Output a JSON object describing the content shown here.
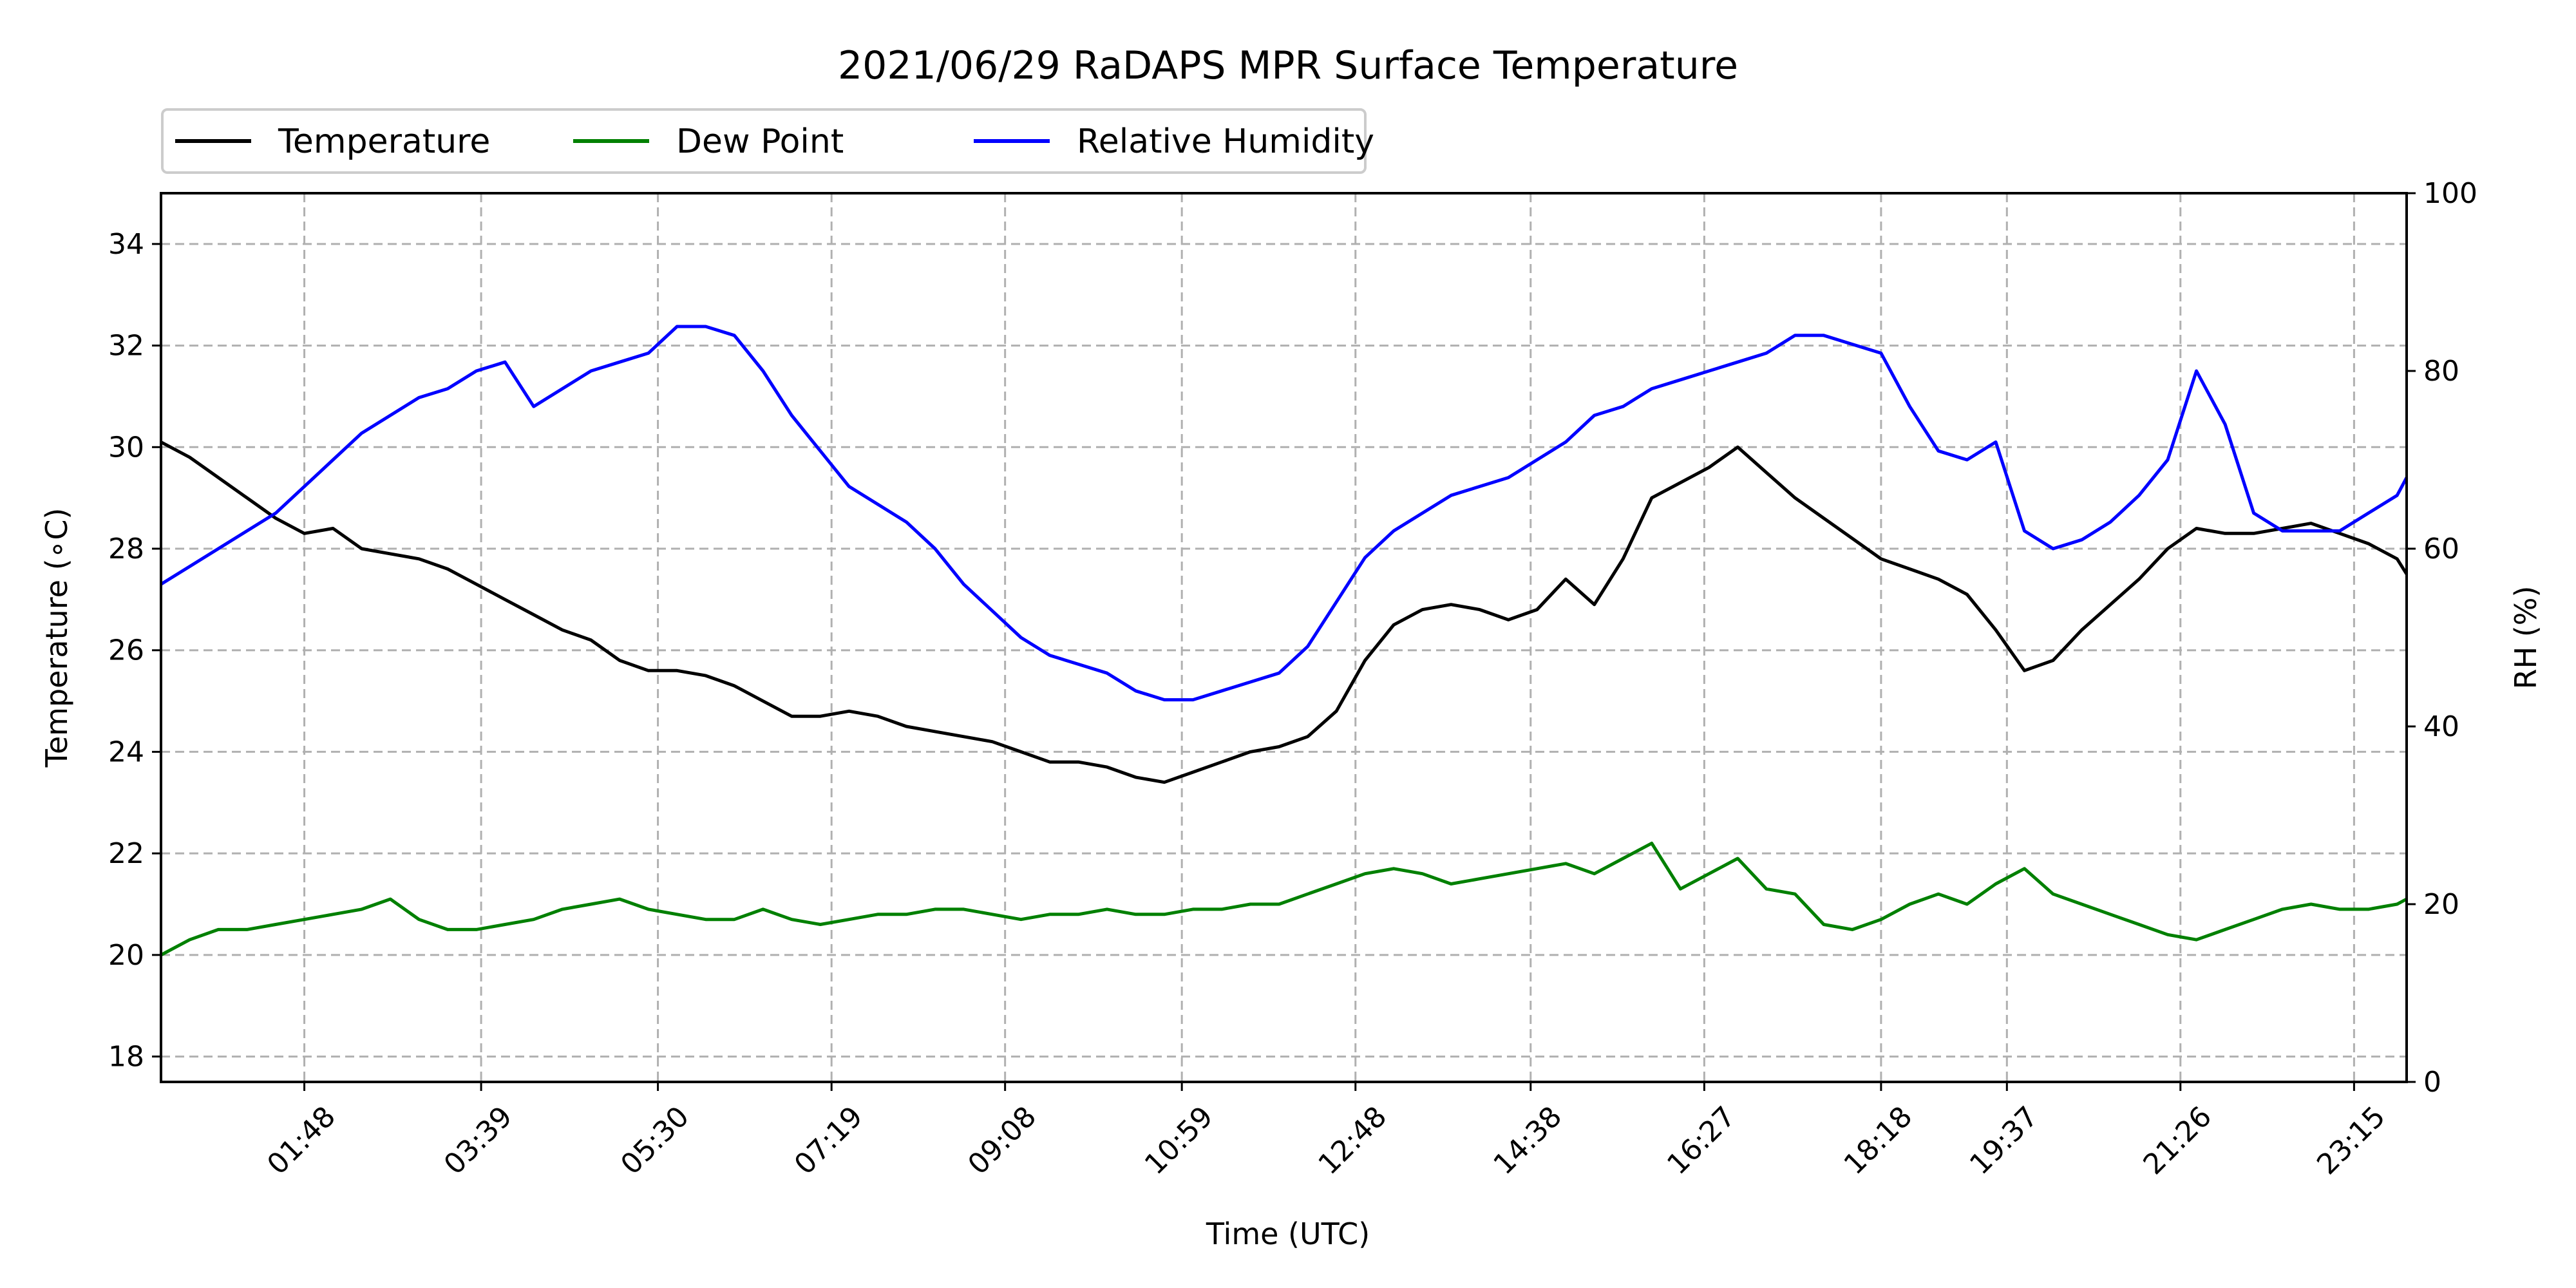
{
  "chart_data": {
    "type": "line",
    "title": "2021/06/29 RaDAPS MPR Surface Temperature",
    "xlabel": "Time (UTC)",
    "ylabel": "Temperature ($^\\circ$C)",
    "ylabel_display": "Temperature (∘C)",
    "y2label": "RH (%)",
    "xlim": [
      0.3,
      23.8
    ],
    "ylim": [
      17.5,
      35
    ],
    "y2lim": [
      0,
      100
    ],
    "xticks": [
      {
        "x": 1.8,
        "label": "01:48"
      },
      {
        "x": 3.65,
        "label": "03:39"
      },
      {
        "x": 5.5,
        "label": "05:30"
      },
      {
        "x": 7.317,
        "label": "07:19"
      },
      {
        "x": 9.133,
        "label": "09:08"
      },
      {
        "x": 10.983,
        "label": "10:59"
      },
      {
        "x": 12.8,
        "label": "12:48"
      },
      {
        "x": 14.633,
        "label": "14:38"
      },
      {
        "x": 16.45,
        "label": "16:27"
      },
      {
        "x": 18.3,
        "label": "18:18"
      },
      {
        "x": 19.617,
        "label": "19:37"
      },
      {
        "x": 21.433,
        "label": "21:26"
      },
      {
        "x": 23.25,
        "label": "23:15"
      }
    ],
    "yticks": [
      18,
      20,
      22,
      24,
      26,
      28,
      30,
      32,
      34
    ],
    "y2ticks": [
      0,
      20,
      40,
      60,
      80,
      100
    ],
    "grid": true,
    "legend": "above top-left",
    "series": [
      {
        "name": "Temperature",
        "color": "#000000",
        "axis": "left",
        "x": [
          0.3,
          0.6,
          0.9,
          1.2,
          1.5,
          1.8,
          2.1,
          2.4,
          2.7,
          3.0,
          3.3,
          3.6,
          3.9,
          4.2,
          4.5,
          4.8,
          5.1,
          5.4,
          5.7,
          6.0,
          6.3,
          6.6,
          6.9,
          7.2,
          7.5,
          7.8,
          8.1,
          8.4,
          8.7,
          9.0,
          9.3,
          9.6,
          9.9,
          10.2,
          10.5,
          10.8,
          11.1,
          11.4,
          11.7,
          12.0,
          12.3,
          12.6,
          12.9,
          13.2,
          13.5,
          13.8,
          14.1,
          14.4,
          14.7,
          15.0,
          15.3,
          15.6,
          15.9,
          16.2,
          16.5,
          16.8,
          17.1,
          17.4,
          17.7,
          18.0,
          18.3,
          18.6,
          18.9,
          19.2,
          19.5,
          19.8,
          20.1,
          20.4,
          20.7,
          21.0,
          21.3,
          21.6,
          21.9,
          22.2,
          22.5,
          22.8,
          23.1,
          23.4,
          23.7,
          23.8
        ],
        "y": [
          30.1,
          29.8,
          29.4,
          29.0,
          28.6,
          28.3,
          28.4,
          28.0,
          27.9,
          27.8,
          27.6,
          27.3,
          27.0,
          26.7,
          26.4,
          26.2,
          25.8,
          25.6,
          25.6,
          25.5,
          25.3,
          25.0,
          24.7,
          24.7,
          24.8,
          24.7,
          24.5,
          24.4,
          24.3,
          24.2,
          24.0,
          23.8,
          23.8,
          23.7,
          23.5,
          23.4,
          23.6,
          23.8,
          24.0,
          24.1,
          24.3,
          24.8,
          25.8,
          26.5,
          26.8,
          26.9,
          26.8,
          26.6,
          26.8,
          27.4,
          26.9,
          27.8,
          29.0,
          29.3,
          29.6,
          30.0,
          29.5,
          29.0,
          28.6,
          28.2,
          27.8,
          27.6,
          27.4,
          27.1,
          26.4,
          25.6,
          25.8,
          26.4,
          26.9,
          27.4,
          28.0,
          28.4,
          28.3,
          28.3,
          28.4,
          28.5,
          28.3,
          28.1,
          27.8,
          27.5
        ]
      },
      {
        "name": "Dew Point",
        "color": "#008000",
        "axis": "left",
        "x": [
          0.3,
          0.6,
          0.9,
          1.2,
          1.5,
          1.8,
          2.1,
          2.4,
          2.7,
          3.0,
          3.3,
          3.6,
          3.9,
          4.2,
          4.5,
          4.8,
          5.1,
          5.4,
          5.7,
          6.0,
          6.3,
          6.6,
          6.9,
          7.2,
          7.5,
          7.8,
          8.1,
          8.4,
          8.7,
          9.0,
          9.3,
          9.6,
          9.9,
          10.2,
          10.5,
          10.8,
          11.1,
          11.4,
          11.7,
          12.0,
          12.3,
          12.6,
          12.9,
          13.2,
          13.5,
          13.8,
          14.1,
          14.4,
          14.7,
          15.0,
          15.3,
          15.6,
          15.9,
          16.2,
          16.5,
          16.8,
          17.1,
          17.4,
          17.7,
          18.0,
          18.3,
          18.6,
          18.9,
          19.2,
          19.5,
          19.8,
          20.1,
          20.4,
          20.7,
          21.0,
          21.3,
          21.6,
          21.9,
          22.2,
          22.5,
          22.8,
          23.1,
          23.4,
          23.7,
          23.8
        ],
        "y": [
          20.0,
          20.3,
          20.5,
          20.5,
          20.6,
          20.7,
          20.8,
          20.9,
          21.1,
          20.7,
          20.5,
          20.5,
          20.6,
          20.7,
          20.9,
          21.0,
          21.1,
          20.9,
          20.8,
          20.7,
          20.7,
          20.9,
          20.7,
          20.6,
          20.7,
          20.8,
          20.8,
          20.9,
          20.9,
          20.8,
          20.7,
          20.8,
          20.8,
          20.9,
          20.8,
          20.8,
          20.9,
          20.9,
          21.0,
          21.0,
          21.2,
          21.4,
          21.6,
          21.7,
          21.6,
          21.4,
          21.5,
          21.6,
          21.7,
          21.8,
          21.6,
          21.9,
          22.2,
          21.3,
          21.6,
          21.9,
          21.3,
          21.2,
          20.6,
          20.5,
          20.7,
          21.0,
          21.2,
          21.0,
          21.4,
          21.7,
          21.2,
          21.0,
          20.8,
          20.6,
          20.4,
          20.3,
          20.5,
          20.7,
          20.9,
          21.0,
          20.9,
          20.9,
          21.0,
          21.1
        ]
      },
      {
        "name": "Relative Humidity",
        "color": "#0000ff",
        "axis": "right",
        "x": [
          0.3,
          0.6,
          0.9,
          1.2,
          1.5,
          1.8,
          2.1,
          2.4,
          2.7,
          3.0,
          3.3,
          3.6,
          3.9,
          4.2,
          4.5,
          4.8,
          5.1,
          5.4,
          5.7,
          6.0,
          6.3,
          6.6,
          6.9,
          7.2,
          7.5,
          7.8,
          8.1,
          8.4,
          8.7,
          9.0,
          9.3,
          9.6,
          9.9,
          10.2,
          10.5,
          10.8,
          11.1,
          11.4,
          11.7,
          12.0,
          12.3,
          12.6,
          12.9,
          13.2,
          13.5,
          13.8,
          14.1,
          14.4,
          14.7,
          15.0,
          15.3,
          15.6,
          15.9,
          16.2,
          16.5,
          16.8,
          17.1,
          17.4,
          17.7,
          18.0,
          18.3,
          18.6,
          18.9,
          19.2,
          19.5,
          19.8,
          20.1,
          20.4,
          20.7,
          21.0,
          21.3,
          21.6,
          21.9,
          22.2,
          22.5,
          22.8,
          23.1,
          23.4,
          23.7,
          23.8
        ],
        "y": [
          56,
          58,
          60,
          62,
          64,
          67,
          70,
          73,
          75,
          77,
          78,
          80,
          81,
          76,
          78,
          80,
          81,
          82,
          85,
          85,
          84,
          80,
          75,
          71,
          67,
          65,
          63,
          60,
          56,
          53,
          50,
          48,
          47,
          46,
          44,
          43,
          43,
          44,
          45,
          46,
          49,
          54,
          59,
          62,
          64,
          66,
          67,
          68,
          70,
          72,
          75,
          76,
          78,
          79,
          80,
          81,
          82,
          84,
          84,
          83,
          82,
          76,
          71,
          70,
          72,
          62,
          60,
          61,
          63,
          66,
          70,
          80,
          74,
          64,
          62,
          62,
          62,
          64,
          66,
          68
        ]
      }
    ]
  }
}
